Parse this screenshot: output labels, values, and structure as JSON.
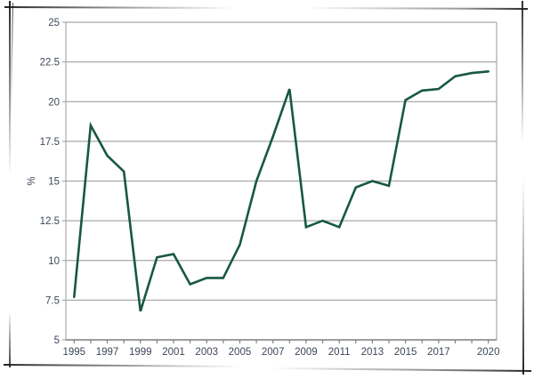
{
  "page": {
    "background": "#ffffff"
  },
  "chart_data": {
    "type": "line",
    "title": "",
    "xlabel": "",
    "ylabel": "%",
    "x": [
      1995,
      1996,
      1997,
      1998,
      1999,
      2000,
      2001,
      2002,
      2003,
      2004,
      2005,
      2006,
      2007,
      2008,
      2009,
      2010,
      2011,
      2012,
      2013,
      2014,
      2015,
      2016,
      2017,
      2018,
      2019,
      2020
    ],
    "values": [
      7.7,
      18.5,
      16.6,
      15.6,
      6.8,
      10.2,
      10.4,
      8.5,
      8.9,
      8.9,
      11.0,
      15.0,
      17.8,
      20.8,
      12.1,
      12.5,
      12.1,
      14.6,
      15.0,
      14.7,
      20.1,
      20.7,
      20.8,
      21.6,
      21.8,
      21.9
    ],
    "ylim": [
      5,
      25
    ],
    "ytick_step": 2.5,
    "ytick_labels": [
      "5",
      "7.5",
      "10",
      "12.5",
      "15",
      "17.5",
      "20",
      "22.5",
      "25"
    ],
    "xtick_labels": [
      "1995",
      "1997",
      "1999",
      "2001",
      "2003",
      "2005",
      "2007",
      "2009",
      "2011",
      "2013",
      "2015",
      "2017",
      "2020"
    ],
    "grid": true,
    "legend": "none",
    "colors": {
      "line": "#17593e",
      "label": "#3d4759",
      "grid": "#a9a9a9",
      "axis": "#7f7f7f",
      "frame": "#1a1a1a"
    }
  }
}
